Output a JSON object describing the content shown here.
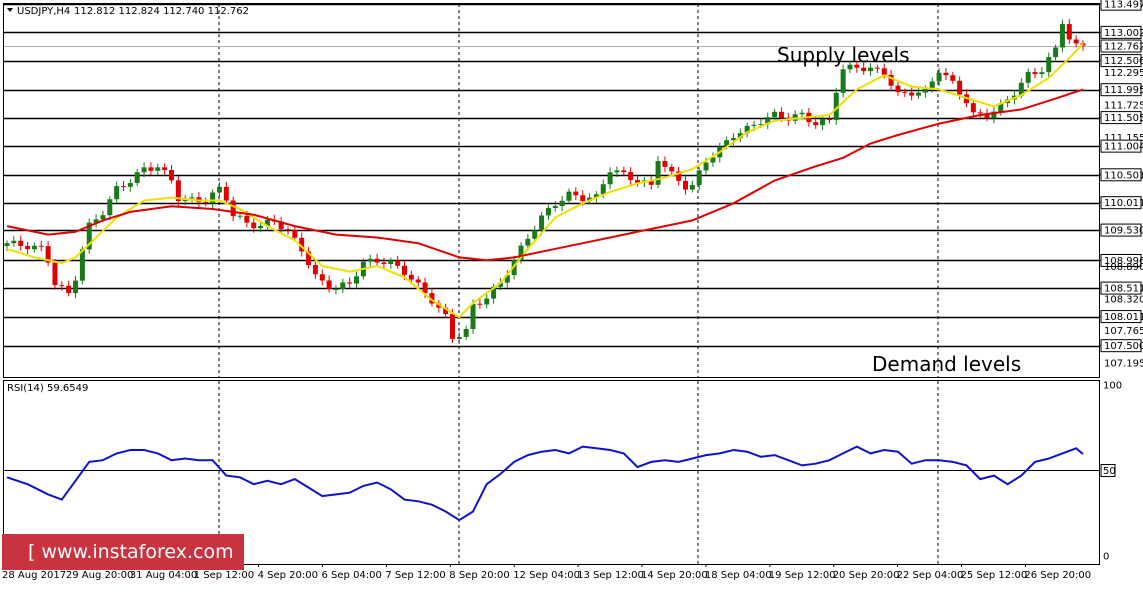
{
  "header": {
    "symbol": "USDJPY,H4",
    "ohlc": "112.812 112.824 112.740 112.762"
  },
  "annotations": {
    "supply": "Supply levels",
    "demand": "Demand levels"
  },
  "watermark": "[ www.instaforex.com ]",
  "colors": {
    "bull": "#1a7a1a",
    "bear": "#e00000",
    "ma_fast": "#f0e000",
    "ma_slow": "#e00000",
    "rsi": "#1010d0",
    "watermark_bg": "#c9323f"
  },
  "chart_data": [
    {
      "type": "candlestick",
      "title": "USDJPY,H4",
      "ylim": [
        106.95,
        113.5
      ],
      "price_labels": [
        "113.497",
        "113.002",
        "112.762",
        "112.506",
        "112.295",
        "111.995",
        "111.725",
        "111.505",
        "111.155",
        "111.004",
        "110.501",
        "110.011",
        "109.530",
        "108.996",
        "108.890",
        "108.511",
        "108.320",
        "108.011",
        "107.765",
        "107.500",
        "107.195"
      ],
      "support_resistance_levels": [
        113.497,
        113.002,
        112.506,
        111.995,
        111.505,
        111.004,
        110.501,
        110.011,
        109.53,
        108.996,
        108.511,
        108.011,
        107.5
      ],
      "current_price": 112.762,
      "x_labels": [
        "28 Aug 2017",
        "29 Aug 20:00",
        "31 Aug 04:00",
        "1 Sep 12:00",
        "4 Sep 20:00",
        "6 Sep 04:00",
        "7 Sep 12:00",
        "8 Sep 20:00",
        "12 Sep 04:00",
        "13 Sep 12:00",
        "14 Sep 20:00",
        "18 Sep 04:00",
        "19 Sep 12:00",
        "20 Sep 20:00",
        "22 Sep 04:00",
        "25 Sep 12:00",
        "26 Sep 20:00"
      ],
      "close_path": [
        [
          0,
          109.3
        ],
        [
          3,
          109.25
        ],
        [
          5,
          109.2
        ],
        [
          6,
          109.0
        ],
        [
          7,
          108.6
        ],
        [
          8,
          108.5
        ],
        [
          9,
          108.4
        ],
        [
          10,
          108.7
        ],
        [
          11,
          109.2
        ],
        [
          12,
          109.6
        ],
        [
          14,
          109.85
        ],
        [
          16,
          110.25
        ],
        [
          18,
          110.4
        ],
        [
          20,
          110.6
        ],
        [
          22,
          110.65
        ],
        [
          24,
          110.4
        ],
        [
          25,
          110.1
        ],
        [
          27,
          110.05
        ],
        [
          29,
          110.05
        ],
        [
          31,
          110.25
        ],
        [
          32,
          110.1
        ],
        [
          33,
          109.8
        ],
        [
          35,
          109.65
        ],
        [
          37,
          109.6
        ],
        [
          39,
          109.7
        ],
        [
          41,
          109.5
        ],
        [
          43,
          109.2
        ],
        [
          45,
          108.7
        ],
        [
          47,
          108.55
        ],
        [
          48,
          108.5
        ],
        [
          50,
          108.6
        ],
        [
          52,
          108.95
        ],
        [
          54,
          109.0
        ],
        [
          56,
          108.95
        ],
        [
          58,
          108.8
        ],
        [
          60,
          108.55
        ],
        [
          62,
          108.3
        ],
        [
          64,
          108.0
        ],
        [
          65,
          107.65
        ],
        [
          66,
          107.7
        ],
        [
          67,
          107.75
        ],
        [
          68,
          108.2
        ],
        [
          70,
          108.35
        ],
        [
          72,
          108.6
        ],
        [
          74,
          109.0
        ],
        [
          76,
          109.4
        ],
        [
          78,
          109.75
        ],
        [
          80,
          110.0
        ],
        [
          82,
          110.15
        ],
        [
          84,
          110.1
        ],
        [
          86,
          110.1
        ],
        [
          88,
          110.6
        ],
        [
          90,
          110.5
        ],
        [
          92,
          110.4
        ],
        [
          94,
          110.3
        ],
        [
          95,
          110.8
        ],
        [
          97,
          110.5
        ],
        [
          99,
          110.3
        ],
        [
          100,
          110.3
        ],
        [
          102,
          110.75
        ],
        [
          104,
          110.95
        ],
        [
          106,
          111.2
        ],
        [
          108,
          111.3
        ],
        [
          110,
          111.45
        ],
        [
          112,
          111.55
        ],
        [
          114,
          111.5
        ],
        [
          116,
          111.55
        ],
        [
          118,
          111.4
        ],
        [
          120,
          111.45
        ],
        [
          121,
          112.0
        ],
        [
          122,
          112.35
        ],
        [
          124,
          112.4
        ],
        [
          126,
          112.35
        ],
        [
          128,
          112.3
        ],
        [
          130,
          111.9
        ],
        [
          132,
          111.95
        ],
        [
          134,
          111.95
        ],
        [
          136,
          112.35
        ],
        [
          138,
          112.1
        ],
        [
          140,
          111.8
        ],
        [
          141,
          111.55
        ],
        [
          143,
          111.55
        ],
        [
          145,
          111.7
        ],
        [
          147,
          111.95
        ],
        [
          149,
          112.25
        ],
        [
          151,
          112.35
        ],
        [
          153,
          112.7
        ],
        [
          154,
          113.2
        ],
        [
          155,
          112.9
        ],
        [
          156,
          112.75
        ],
        [
          157,
          112.76
        ]
      ],
      "series": [
        {
          "type": "line",
          "path": [
            [
              0,
              109.2
            ],
            [
              4,
              109.05
            ],
            [
              8,
              108.95
            ],
            [
              10,
              109.05
            ],
            [
              13,
              109.4
            ],
            [
              16,
              109.75
            ],
            [
              20,
              110.05
            ],
            [
              24,
              110.1
            ],
            [
              28,
              110.05
            ],
            [
              31,
              110.05
            ],
            [
              34,
              109.9
            ],
            [
              38,
              109.6
            ],
            [
              42,
              109.35
            ],
            [
              46,
              108.9
            ],
            [
              50,
              108.8
            ],
            [
              54,
              108.9
            ],
            [
              58,
              108.7
            ],
            [
              62,
              108.3
            ],
            [
              66,
              108.0
            ],
            [
              68,
              108.25
            ],
            [
              72,
              108.6
            ],
            [
              76,
              109.2
            ],
            [
              80,
              109.75
            ],
            [
              84,
              110.0
            ],
            [
              88,
              110.2
            ],
            [
              92,
              110.35
            ],
            [
              96,
              110.45
            ],
            [
              100,
              110.6
            ],
            [
              104,
              110.9
            ],
            [
              108,
              111.25
            ],
            [
              112,
              111.45
            ],
            [
              116,
              111.5
            ],
            [
              120,
              111.55
            ],
            [
              124,
              112.0
            ],
            [
              128,
              112.25
            ],
            [
              132,
              112.05
            ],
            [
              136,
              112.0
            ],
            [
              140,
              111.85
            ],
            [
              144,
              111.7
            ],
            [
              148,
              111.9
            ],
            [
              152,
              112.2
            ],
            [
              155,
              112.55
            ],
            [
              157,
              112.8
            ]
          ]
        },
        {
          "type": "line",
          "path": [
            [
              0,
              109.6
            ],
            [
              6,
              109.45
            ],
            [
              10,
              109.5
            ],
            [
              14,
              109.7
            ],
            [
              18,
              109.85
            ],
            [
              24,
              109.95
            ],
            [
              30,
              109.9
            ],
            [
              36,
              109.8
            ],
            [
              42,
              109.6
            ],
            [
              48,
              109.45
            ],
            [
              54,
              109.4
            ],
            [
              60,
              109.3
            ],
            [
              66,
              109.05
            ],
            [
              70,
              109.0
            ],
            [
              74,
              109.05
            ],
            [
              78,
              109.15
            ],
            [
              84,
              109.3
            ],
            [
              90,
              109.45
            ],
            [
              96,
              109.6
            ],
            [
              100,
              109.7
            ],
            [
              106,
              110.0
            ],
            [
              112,
              110.4
            ],
            [
              118,
              110.65
            ],
            [
              122,
              110.8
            ],
            [
              126,
              111.05
            ],
            [
              130,
              111.2
            ],
            [
              136,
              111.4
            ],
            [
              142,
              111.55
            ],
            [
              148,
              111.65
            ],
            [
              152,
              111.8
            ],
            [
              157,
              112.0
            ]
          ]
        }
      ]
    },
    {
      "type": "line",
      "title": "RSI(14) 59.6549",
      "ylim": [
        0,
        100
      ],
      "y_labels": [
        "100",
        "50",
        "0"
      ],
      "level": 50,
      "series": [
        {
          "x": [
            0,
            3,
            6,
            8,
            10,
            12,
            14,
            16,
            18,
            20,
            22,
            24,
            26,
            28,
            30,
            32,
            34,
            36,
            38,
            40,
            42,
            44,
            46,
            48,
            50,
            52,
            54,
            56,
            58,
            60,
            62,
            64,
            66,
            68,
            70,
            72,
            74,
            76,
            78,
            80,
            82,
            84,
            86,
            88,
            90,
            92,
            94,
            96,
            98,
            100,
            102,
            104,
            106,
            108,
            110,
            112,
            114,
            116,
            118,
            120,
            122,
            124,
            126,
            128,
            130,
            132,
            134,
            136,
            138,
            140,
            142,
            144,
            146,
            148,
            150,
            152,
            154,
            156,
            157
          ],
          "y": [
            46,
            42,
            36,
            33,
            44,
            55,
            56,
            60,
            62,
            62,
            60,
            56,
            57,
            56,
            56,
            47,
            46,
            42,
            44,
            42,
            45,
            40,
            35,
            36,
            37,
            41,
            43,
            39,
            33,
            32,
            30,
            26,
            21,
            26,
            42,
            48,
            55,
            59,
            61,
            62,
            60,
            64,
            63,
            62,
            60,
            52,
            55,
            56,
            55,
            57,
            59,
            60,
            62,
            61,
            58,
            59,
            56,
            53,
            54,
            56,
            60,
            64,
            60,
            62,
            61,
            54,
            56,
            56,
            55,
            53,
            45,
            47,
            42,
            47,
            55,
            57,
            60,
            63,
            59.65
          ]
        }
      ]
    }
  ]
}
